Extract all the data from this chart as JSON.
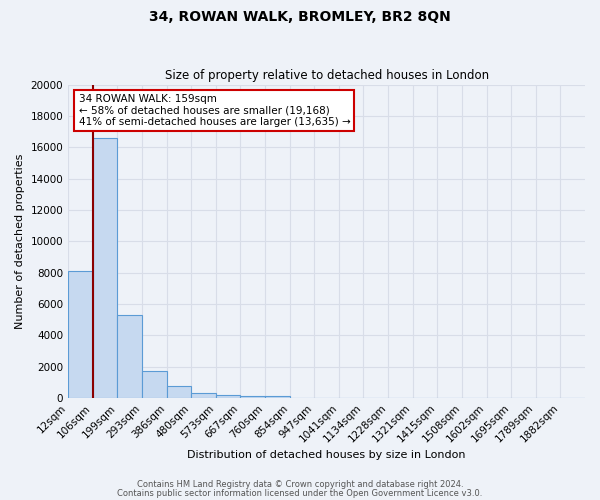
{
  "title": "34, ROWAN WALK, BROMLEY, BR2 8QN",
  "subtitle": "Size of property relative to detached houses in London",
  "xlabel": "Distribution of detached houses by size in London",
  "ylabel": "Number of detached properties",
  "bar_labels": [
    "12sqm",
    "106sqm",
    "199sqm",
    "293sqm",
    "386sqm",
    "480sqm",
    "573sqm",
    "667sqm",
    "760sqm",
    "854sqm",
    "947sqm",
    "1041sqm",
    "1134sqm",
    "1228sqm",
    "1321sqm",
    "1415sqm",
    "1508sqm",
    "1602sqm",
    "1695sqm",
    "1789sqm",
    "1882sqm"
  ],
  "bar_values": [
    8100,
    16600,
    5300,
    1750,
    750,
    300,
    200,
    100,
    150,
    0,
    0,
    0,
    0,
    0,
    0,
    0,
    0,
    0,
    0,
    0,
    0
  ],
  "bar_color": "#c6d9f0",
  "bar_edge_color": "#5b9bd5",
  "ylim": [
    0,
    20000
  ],
  "yticks": [
    0,
    2000,
    4000,
    6000,
    8000,
    10000,
    12000,
    14000,
    16000,
    18000,
    20000
  ],
  "property_line_color": "#8b0000",
  "annotation_title": "34 ROWAN WALK: 159sqm",
  "annotation_line1": "← 58% of detached houses are smaller (19,168)",
  "annotation_line2": "41% of semi-detached houses are larger (13,635) →",
  "annotation_box_color": "#ffffff",
  "annotation_box_edge": "#cc0000",
  "footer1": "Contains HM Land Registry data © Crown copyright and database right 2024.",
  "footer2": "Contains public sector information licensed under the Open Government Licence v3.0.",
  "background_color": "#eef2f8",
  "grid_color": "#d8dde8",
  "title_fontsize": 10,
  "subtitle_fontsize": 8.5,
  "ylabel_fontsize": 8,
  "xlabel_fontsize": 8,
  "tick_fontsize": 7.5,
  "footer_fontsize": 6
}
